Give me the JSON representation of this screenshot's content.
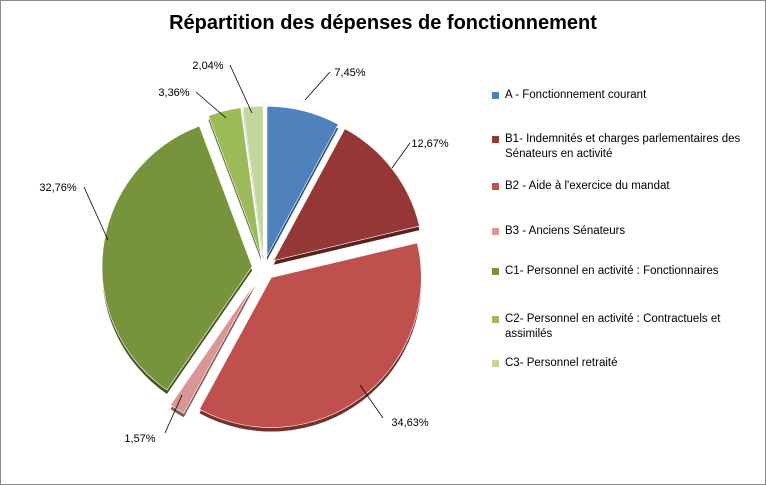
{
  "chart_data": {
    "type": "pie",
    "title": "Répartition des dépenses de fonctionnement",
    "legend_position": "right",
    "slices": [
      {
        "legend": "A - Fonctionnement courant",
        "value": 7.45,
        "label": "7,45%",
        "color": "#4f81bd"
      },
      {
        "legend": "B1- Indemnités et charges parlementaires des Sénateurs en activité",
        "value": 12.67,
        "label": "12,67%",
        "color": "#953735"
      },
      {
        "legend": "B2 - Aide à l'exercice du mandat",
        "value": 34.63,
        "label": "34,63%",
        "color": "#c0504d"
      },
      {
        "legend": "B3 - Anciens Sénateurs",
        "value": 1.57,
        "label": "1,57%",
        "color": "#d99694"
      },
      {
        "legend": "C1- Personnel en activité : Fonctionnaires",
        "value": 32.76,
        "label": "32,76%",
        "color": "#77933c"
      },
      {
        "legend": "C2- Personnel en activité : Contractuels et assimilés",
        "value": 3.36,
        "label": "3,36%",
        "color": "#9bbb59"
      },
      {
        "legend": "C3- Personnel retraité",
        "value": 2.04,
        "label": "2,04%",
        "color": "#c3d69b"
      }
    ]
  }
}
